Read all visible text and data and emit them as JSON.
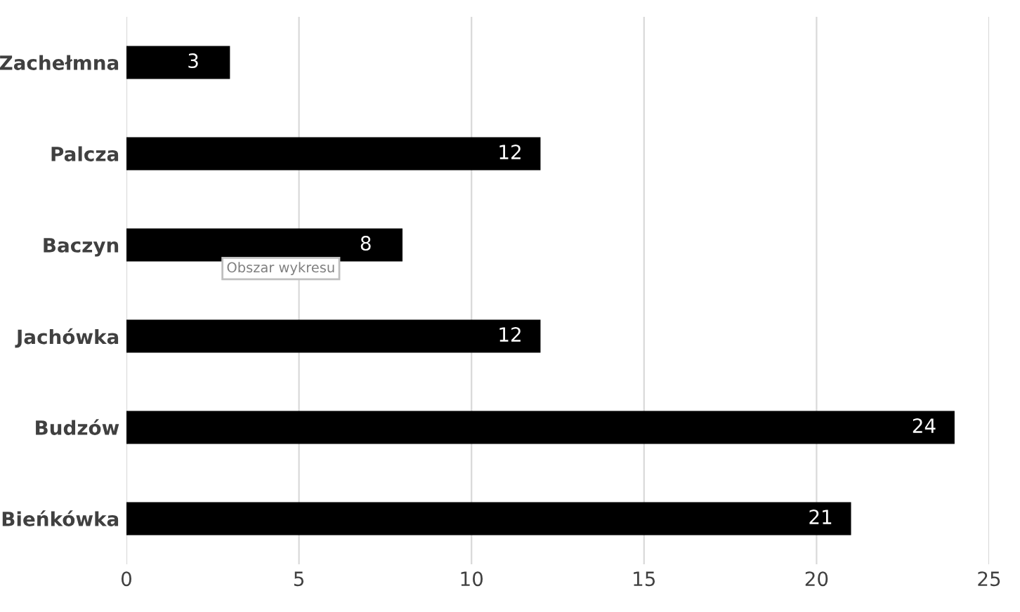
{
  "chart_data": {
    "type": "bar",
    "orientation": "horizontal",
    "categories": [
      "Zachełmna",
      "Palcza",
      "Baczyn",
      "Jachówka",
      "Budzów",
      "Bieńkówka"
    ],
    "values": [
      3,
      12,
      8,
      12,
      24,
      21
    ],
    "color": "#000000",
    "xlim": [
      0,
      25
    ],
    "xticks": [
      0,
      5,
      10,
      15,
      20,
      25
    ],
    "grid": "x",
    "data_labels": true,
    "annotations": [
      "Obszar wykresu"
    ]
  }
}
